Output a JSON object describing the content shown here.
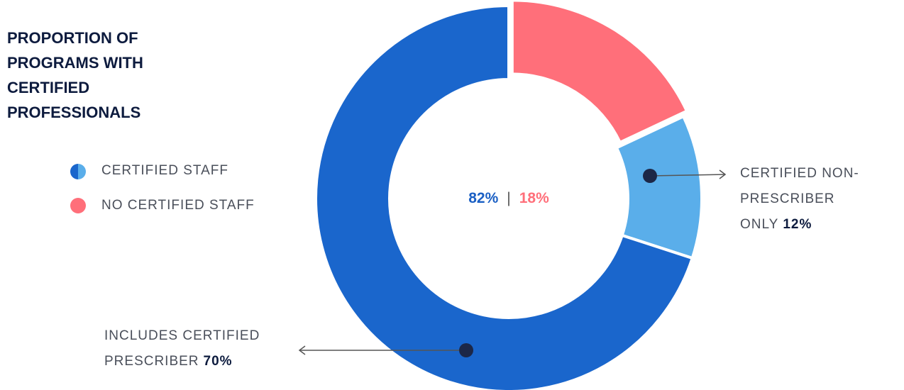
{
  "chart_data": {
    "type": "donut",
    "title": "PROPORTION OF PROGRAMS WITH CERTIFIED PROFESSIONALS",
    "categories": [
      null,
      "CERTIFIED NON-PRESCRIBER ONLY",
      "INCLUDES CERTIFIED PRESCRIBER"
    ],
    "values": [
      18,
      12,
      70
    ],
    "value_labels": [
      null,
      "12%",
      "70%"
    ],
    "colors": [
      "#ff6f7a",
      "#5aaeea",
      "#1a66cc"
    ],
    "explode": [
      true,
      false,
      false
    ],
    "legend": [
      {
        "name": "CERTIFIED STAFF",
        "colors": [
          "#1a66cc",
          "#5aaeea"
        ]
      },
      {
        "name": "NO CERTIFIED STAFF",
        "colors": [
          "#ff6f7a"
        ]
      }
    ],
    "totals": {
      "values": [
        82,
        18
      ],
      "value_labels": [
        "82%",
        "18%"
      ],
      "colors": [
        "#1a5fc4",
        "#ff6f7a"
      ]
    }
  }
}
